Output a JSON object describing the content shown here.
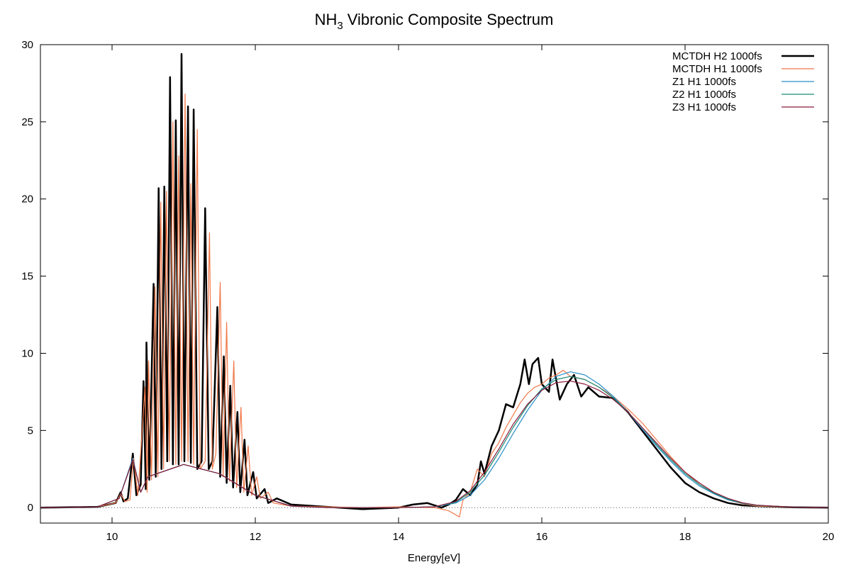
{
  "chart_data": {
    "type": "line",
    "title": "Vibronic Composite Spectrum",
    "title_species": "NH",
    "title_subscript": "3",
    "xlabel": "Energy[eV]",
    "ylabel": "",
    "xlim": [
      9,
      20
    ],
    "ylim": [
      -1,
      30
    ],
    "x_ticks": [
      10,
      12,
      14,
      16,
      18,
      20
    ],
    "y_ticks": [
      0,
      5,
      10,
      15,
      20,
      25,
      30
    ],
    "zero_line": "dotted",
    "legend_position": "top-right",
    "series": [
      {
        "name": "MCTDH H2 1000fs",
        "color": "#000000",
        "width": 2.5,
        "values": [
          [
            9,
            0
          ],
          [
            9.8,
            0.05
          ],
          [
            10.05,
            0.3
          ],
          [
            10.12,
            1.0
          ],
          [
            10.16,
            0.4
          ],
          [
            10.22,
            0.6
          ],
          [
            10.29,
            3.5
          ],
          [
            10.34,
            0.8
          ],
          [
            10.4,
            1.5
          ],
          [
            10.44,
            8.2
          ],
          [
            10.47,
            1.2
          ],
          [
            10.48,
            10.7
          ],
          [
            10.52,
            1.8
          ],
          [
            10.58,
            14.5
          ],
          [
            10.61,
            2.0
          ],
          [
            10.65,
            20.7
          ],
          [
            10.69,
            2.5
          ],
          [
            10.73,
            20.8
          ],
          [
            10.77,
            3.0
          ],
          [
            10.81,
            27.9
          ],
          [
            10.85,
            2.8
          ],
          [
            10.89,
            25.1
          ],
          [
            10.93,
            2.8
          ],
          [
            10.97,
            29.4
          ],
          [
            11.01,
            3.0
          ],
          [
            11.06,
            26.0
          ],
          [
            11.1,
            2.9
          ],
          [
            11.14,
            25.8
          ],
          [
            11.19,
            2.5
          ],
          [
            11.25,
            3.0
          ],
          [
            11.3,
            19.4
          ],
          [
            11.35,
            2.5
          ],
          [
            11.4,
            3.0
          ],
          [
            11.47,
            13.0
          ],
          [
            11.51,
            2.0
          ],
          [
            11.56,
            9.8
          ],
          [
            11.6,
            1.6
          ],
          [
            11.65,
            7.9
          ],
          [
            11.69,
            1.3
          ],
          [
            11.75,
            6.2
          ],
          [
            11.79,
            1.0
          ],
          [
            11.85,
            4.4
          ],
          [
            11.89,
            0.8
          ],
          [
            11.97,
            2.3
          ],
          [
            12.02,
            0.6
          ],
          [
            12.13,
            1.2
          ],
          [
            12.18,
            0.3
          ],
          [
            12.3,
            0.6
          ],
          [
            12.5,
            0.2
          ],
          [
            13.0,
            0.05
          ],
          [
            13.5,
            -0.1
          ],
          [
            14.0,
            0.0
          ],
          [
            14.2,
            0.2
          ],
          [
            14.4,
            0.3
          ],
          [
            14.6,
            0.0
          ],
          [
            14.7,
            0.2
          ],
          [
            14.8,
            0.5
          ],
          [
            14.9,
            1.2
          ],
          [
            15.0,
            0.8
          ],
          [
            15.1,
            1.5
          ],
          [
            15.15,
            3.0
          ],
          [
            15.2,
            2.2
          ],
          [
            15.3,
            4.0
          ],
          [
            15.4,
            5.0
          ],
          [
            15.5,
            6.7
          ],
          [
            15.6,
            6.5
          ],
          [
            15.7,
            8.0
          ],
          [
            15.76,
            9.6
          ],
          [
            15.82,
            8.0
          ],
          [
            15.87,
            9.3
          ],
          [
            15.95,
            9.7
          ],
          [
            16.0,
            8.0
          ],
          [
            16.1,
            7.5
          ],
          [
            16.15,
            9.6
          ],
          [
            16.25,
            7.0
          ],
          [
            16.35,
            8.0
          ],
          [
            16.45,
            8.6
          ],
          [
            16.55,
            7.2
          ],
          [
            16.65,
            7.8
          ],
          [
            16.8,
            7.2
          ],
          [
            17.0,
            7.1
          ],
          [
            17.2,
            6.2
          ],
          [
            17.4,
            5.0
          ],
          [
            17.6,
            3.8
          ],
          [
            17.8,
            2.6
          ],
          [
            18.0,
            1.6
          ],
          [
            18.2,
            1.0
          ],
          [
            18.4,
            0.6
          ],
          [
            18.6,
            0.3
          ],
          [
            18.8,
            0.15
          ],
          [
            19.0,
            0.1
          ],
          [
            19.5,
            0.02
          ],
          [
            20,
            0
          ]
        ]
      },
      {
        "name": "MCTDH H1 1000fs",
        "color": "#f07849",
        "width": 1.2,
        "values": [
          [
            9,
            0
          ],
          [
            9.8,
            0.05
          ],
          [
            10.05,
            0.3
          ],
          [
            10.12,
            0.9
          ],
          [
            10.18,
            0.4
          ],
          [
            10.25,
            0.5
          ],
          [
            10.3,
            3.2
          ],
          [
            10.36,
            0.8
          ],
          [
            10.46,
            7.8
          ],
          [
            10.49,
            1.0
          ],
          [
            10.51,
            9.5
          ],
          [
            10.55,
            1.8
          ],
          [
            10.6,
            14.3
          ],
          [
            10.64,
            2.0
          ],
          [
            10.68,
            19.8
          ],
          [
            10.72,
            2.5
          ],
          [
            10.76,
            20.5
          ],
          [
            10.8,
            3.0
          ],
          [
            10.85,
            25.0
          ],
          [
            10.89,
            2.8
          ],
          [
            10.93,
            22.8
          ],
          [
            10.97,
            3.0
          ],
          [
            11.02,
            26.8
          ],
          [
            11.06,
            3.0
          ],
          [
            11.1,
            21.0
          ],
          [
            11.14,
            2.8
          ],
          [
            11.19,
            24.5
          ],
          [
            11.23,
            2.5
          ],
          [
            11.3,
            3.0
          ],
          [
            11.36,
            17.8
          ],
          [
            11.4,
            2.5
          ],
          [
            11.45,
            3.5
          ],
          [
            11.51,
            14.6
          ],
          [
            11.55,
            2.0
          ],
          [
            11.6,
            12.0
          ],
          [
            11.64,
            1.7
          ],
          [
            11.7,
            9.5
          ],
          [
            11.74,
            1.3
          ],
          [
            11.8,
            6.5
          ],
          [
            11.84,
            1.0
          ],
          [
            11.9,
            4.0
          ],
          [
            11.95,
            0.8
          ],
          [
            12.02,
            2.0
          ],
          [
            12.07,
            0.6
          ],
          [
            12.18,
            1.0
          ],
          [
            12.25,
            0.3
          ],
          [
            12.5,
            0.1
          ],
          [
            13.0,
            0.05
          ],
          [
            13.5,
            0.0
          ],
          [
            14.0,
            0.05
          ],
          [
            14.5,
            0.0
          ],
          [
            14.7,
            -0.2
          ],
          [
            14.85,
            -0.6
          ],
          [
            14.9,
            0.5
          ],
          [
            15.0,
            1.0
          ],
          [
            15.1,
            2.5
          ],
          [
            15.2,
            2.0
          ],
          [
            15.3,
            3.5
          ],
          [
            15.4,
            4.2
          ],
          [
            15.5,
            5.2
          ],
          [
            15.6,
            6.0
          ],
          [
            15.7,
            6.8
          ],
          [
            15.8,
            7.4
          ],
          [
            15.9,
            7.8
          ],
          [
            16.0,
            8.0
          ],
          [
            16.1,
            8.4
          ],
          [
            16.2,
            8.6
          ],
          [
            16.3,
            8.9
          ],
          [
            16.4,
            8.5
          ],
          [
            16.6,
            8.3
          ],
          [
            16.8,
            7.8
          ],
          [
            17.0,
            7.2
          ],
          [
            17.2,
            6.4
          ],
          [
            17.4,
            5.5
          ],
          [
            17.6,
            4.4
          ],
          [
            17.8,
            3.3
          ],
          [
            18.0,
            2.3
          ],
          [
            18.2,
            1.5
          ],
          [
            18.4,
            0.9
          ],
          [
            18.6,
            0.5
          ],
          [
            18.8,
            0.25
          ],
          [
            19.0,
            0.1
          ],
          [
            19.5,
            0.02
          ],
          [
            20,
            0
          ]
        ]
      },
      {
        "name": "Z1 H1 1000fs",
        "color": "#2a8fc6",
        "width": 1.2,
        "values": [
          [
            9,
            0
          ],
          [
            9.8,
            0.05
          ],
          [
            10.1,
            0.6
          ],
          [
            10.29,
            3.2
          ],
          [
            10.4,
            1.0
          ],
          [
            10.5,
            2.0
          ],
          [
            11.0,
            2.8
          ],
          [
            11.5,
            2.2
          ],
          [
            12.0,
            0.8
          ],
          [
            12.5,
            0.1
          ],
          [
            13.0,
            0.0
          ],
          [
            14.0,
            0.0
          ],
          [
            14.5,
            0.05
          ],
          [
            14.8,
            0.3
          ],
          [
            15.0,
            0.8
          ],
          [
            15.2,
            1.8
          ],
          [
            15.4,
            3.2
          ],
          [
            15.6,
            4.8
          ],
          [
            15.8,
            6.3
          ],
          [
            16.0,
            7.6
          ],
          [
            16.2,
            8.5
          ],
          [
            16.4,
            8.8
          ],
          [
            16.6,
            8.6
          ],
          [
            16.8,
            8.0
          ],
          [
            17.0,
            7.2
          ],
          [
            17.2,
            6.2
          ],
          [
            17.4,
            5.1
          ],
          [
            17.6,
            4.0
          ],
          [
            17.8,
            3.0
          ],
          [
            18.0,
            2.1
          ],
          [
            18.2,
            1.4
          ],
          [
            18.4,
            0.9
          ],
          [
            18.6,
            0.5
          ],
          [
            18.8,
            0.28
          ],
          [
            19.0,
            0.15
          ],
          [
            19.5,
            0.03
          ],
          [
            20,
            0
          ]
        ]
      },
      {
        "name": "Z2 H1 1000fs",
        "color": "#1a8a78",
        "width": 1.2,
        "values": [
          [
            9,
            0
          ],
          [
            9.8,
            0.05
          ],
          [
            10.1,
            0.6
          ],
          [
            10.29,
            3.1
          ],
          [
            10.4,
            1.0
          ],
          [
            10.5,
            2.0
          ],
          [
            11.0,
            2.8
          ],
          [
            11.5,
            2.2
          ],
          [
            12.0,
            0.8
          ],
          [
            12.5,
            0.1
          ],
          [
            13.0,
            0.0
          ],
          [
            14.0,
            0.0
          ],
          [
            14.5,
            0.05
          ],
          [
            14.8,
            0.35
          ],
          [
            15.0,
            1.0
          ],
          [
            15.2,
            2.1
          ],
          [
            15.4,
            3.6
          ],
          [
            15.6,
            5.2
          ],
          [
            15.8,
            6.6
          ],
          [
            16.0,
            7.7
          ],
          [
            16.2,
            8.3
          ],
          [
            16.4,
            8.5
          ],
          [
            16.6,
            8.3
          ],
          [
            16.8,
            7.8
          ],
          [
            17.0,
            7.1
          ],
          [
            17.2,
            6.2
          ],
          [
            17.4,
            5.2
          ],
          [
            17.6,
            4.1
          ],
          [
            17.8,
            3.1
          ],
          [
            18.0,
            2.2
          ],
          [
            18.2,
            1.5
          ],
          [
            18.4,
            0.95
          ],
          [
            18.6,
            0.55
          ],
          [
            18.8,
            0.3
          ],
          [
            19.0,
            0.15
          ],
          [
            19.5,
            0.03
          ],
          [
            20,
            0
          ]
        ]
      },
      {
        "name": "Z3 H1 1000fs",
        "color": "#8b1a3a",
        "width": 1.2,
        "values": [
          [
            9,
            0
          ],
          [
            9.8,
            0.05
          ],
          [
            10.1,
            0.6
          ],
          [
            10.29,
            3.1
          ],
          [
            10.4,
            1.0
          ],
          [
            10.5,
            2.0
          ],
          [
            11.0,
            2.8
          ],
          [
            11.5,
            2.2
          ],
          [
            12.0,
            0.8
          ],
          [
            12.5,
            0.1
          ],
          [
            13.0,
            0.0
          ],
          [
            14.0,
            0.0
          ],
          [
            14.5,
            0.05
          ],
          [
            14.8,
            0.4
          ],
          [
            15.0,
            1.1
          ],
          [
            15.2,
            2.3
          ],
          [
            15.4,
            3.8
          ],
          [
            15.6,
            5.4
          ],
          [
            15.8,
            6.7
          ],
          [
            16.0,
            7.6
          ],
          [
            16.2,
            8.1
          ],
          [
            16.4,
            8.2
          ],
          [
            16.6,
            8.0
          ],
          [
            16.8,
            7.6
          ],
          [
            17.0,
            7.0
          ],
          [
            17.2,
            6.2
          ],
          [
            17.4,
            5.2
          ],
          [
            17.6,
            4.2
          ],
          [
            17.8,
            3.2
          ],
          [
            18.0,
            2.3
          ],
          [
            18.2,
            1.6
          ],
          [
            18.4,
            1.0
          ],
          [
            18.6,
            0.6
          ],
          [
            18.8,
            0.32
          ],
          [
            19.0,
            0.16
          ],
          [
            19.5,
            0.03
          ],
          [
            20,
            0
          ]
        ]
      }
    ]
  }
}
